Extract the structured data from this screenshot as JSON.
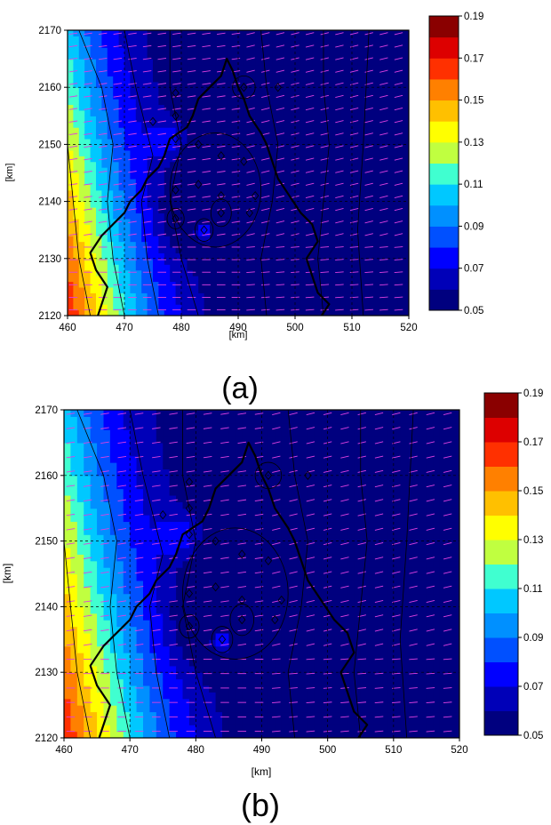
{
  "panels": [
    {
      "caption": "(a)",
      "chart_data": {
        "type": "heatmap",
        "xlabel": "[km]",
        "ylabel": "[km]",
        "xlim": [
          460,
          520
        ],
        "ylim": [
          2120,
          2170
        ],
        "x_ticks": [
          "460",
          "470",
          "480",
          "490",
          "500",
          "510",
          "520"
        ],
        "y_ticks": [
          "2120",
          "2130",
          "2140",
          "2150",
          "2160",
          "2170"
        ],
        "grid": true,
        "colorbar": {
          "min": 0.05,
          "max": 0.19,
          "levels": 14,
          "tick_labels": [
            "0.19",
            "0.17",
            "0.15",
            "0.13",
            "0.11",
            "0.09",
            "0.07",
            "0.05"
          ]
        },
        "stations": [
          [
            479,
            2159
          ],
          [
            475,
            2154
          ],
          [
            479,
            2155
          ],
          [
            479,
            2151
          ],
          [
            483,
            2150
          ],
          [
            487,
            2148
          ],
          [
            491,
            2147
          ],
          [
            479,
            2142
          ],
          [
            483,
            2143
          ],
          [
            487,
            2141
          ],
          [
            493,
            2141
          ],
          [
            479,
            2137
          ],
          [
            484,
            2135
          ],
          [
            487,
            2138
          ],
          [
            492,
            2138
          ],
          [
            491,
            2160
          ],
          [
            497,
            2160
          ]
        ]
      }
    },
    {
      "caption": "(b)",
      "chart_data": {
        "type": "heatmap",
        "xlabel": "[km]",
        "ylabel": "[km]",
        "xlim": [
          460,
          520
        ],
        "ylim": [
          2120,
          2170
        ],
        "x_ticks": [
          "460",
          "470",
          "480",
          "490",
          "500",
          "510",
          "520"
        ],
        "y_ticks": [
          "2120",
          "2130",
          "2140",
          "2150",
          "2160",
          "2170"
        ],
        "grid": true,
        "colorbar": {
          "min": 0.05,
          "max": 0.19,
          "levels": 14,
          "tick_labels": [
            "0.19",
            "0.17",
            "0.15",
            "0.13",
            "0.11",
            "0.09",
            "0.07",
            "0.05"
          ]
        },
        "stations": [
          [
            479,
            2159
          ],
          [
            475,
            2154
          ],
          [
            479,
            2155
          ],
          [
            479,
            2151
          ],
          [
            483,
            2150
          ],
          [
            487,
            2148
          ],
          [
            491,
            2147
          ],
          [
            479,
            2142
          ],
          [
            483,
            2143
          ],
          [
            487,
            2141
          ],
          [
            493,
            2141
          ],
          [
            479,
            2137
          ],
          [
            484,
            2135
          ],
          [
            487,
            2138
          ],
          [
            492,
            2138
          ],
          [
            491,
            2160
          ],
          [
            497,
            2160
          ]
        ]
      }
    }
  ],
  "colors": {
    "wind_vectors": "#e040e0",
    "grid": "#000000",
    "palette": [
      "#00007f",
      "#0000b8",
      "#0000ff",
      "#0050ff",
      "#0090ff",
      "#00c8ff",
      "#40ffd0",
      "#80ff80",
      "#c0ff40",
      "#ffff00",
      "#ffc000",
      "#ff8000",
      "#ff3000",
      "#dd0000",
      "#8a0000"
    ]
  }
}
